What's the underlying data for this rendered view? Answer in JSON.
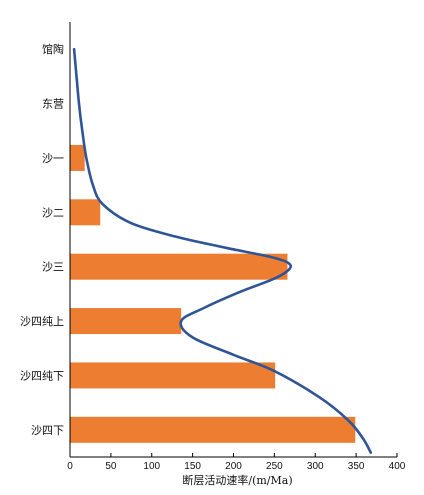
{
  "chart_data": {
    "type": "bar",
    "orientation": "horizontal",
    "categories": [
      "馆陶",
      "东营",
      "沙一",
      "沙二",
      "沙三",
      "沙四纯上",
      "沙四纯下",
      "沙四下"
    ],
    "series": [
      {
        "values": [
          0,
          0,
          18,
          37,
          266,
          136,
          251,
          349
        ],
        "color": "#ED7D31"
      }
    ],
    "curve": {
      "color": "#2F5597",
      "points": [
        {
          "x": 5,
          "y": 0
        },
        {
          "x": 8,
          "y": 0.5
        },
        {
          "x": 11,
          "y": 1
        },
        {
          "x": 15,
          "y": 1.5
        },
        {
          "x": 20,
          "y": 2
        },
        {
          "x": 28,
          "y": 2.5
        },
        {
          "x": 40,
          "y": 2.85
        },
        {
          "x": 75,
          "y": 3.2
        },
        {
          "x": 130,
          "y": 3.45
        },
        {
          "x": 190,
          "y": 3.65
        },
        {
          "x": 245,
          "y": 3.82
        },
        {
          "x": 267,
          "y": 3.93
        },
        {
          "x": 268,
          "y": 4.05
        },
        {
          "x": 250,
          "y": 4.22
        },
        {
          "x": 210,
          "y": 4.45
        },
        {
          "x": 165,
          "y": 4.75
        },
        {
          "x": 136,
          "y": 5
        },
        {
          "x": 150,
          "y": 5.3
        },
        {
          "x": 200,
          "y": 5.62
        },
        {
          "x": 250,
          "y": 5.92
        },
        {
          "x": 305,
          "y": 6.4
        },
        {
          "x": 340,
          "y": 6.82
        },
        {
          "x": 358,
          "y": 7.15
        },
        {
          "x": 368,
          "y": 7.42
        }
      ]
    },
    "xlabel": "断层活动速率/(m/Ma)",
    "xlim": [
      0,
      400
    ],
    "xticks": [
      0,
      50,
      100,
      150,
      200,
      250,
      300,
      350,
      400
    ],
    "grid": false,
    "legend": "none"
  }
}
